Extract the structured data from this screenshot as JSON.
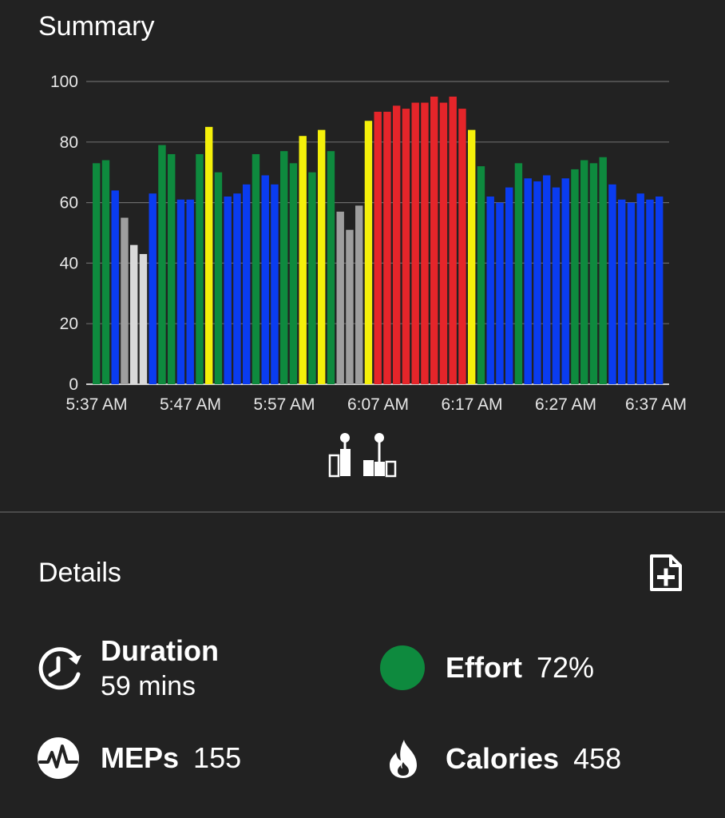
{
  "summary": {
    "title": "Summary"
  },
  "details": {
    "title": "Details"
  },
  "metrics": {
    "duration": {
      "label": "Duration",
      "value": "59 mins",
      "icon": "clock-refresh-icon"
    },
    "effort": {
      "label": "Effort",
      "value": "72%",
      "icon": "effort-dot-icon",
      "color": "#0e8a3e"
    },
    "meps": {
      "label": "MEPs",
      "value": "155",
      "icon": "heartbeat-icon"
    },
    "calories": {
      "label": "Calories",
      "value": "458",
      "icon": "flame-icon"
    }
  },
  "colors": {
    "gray": "#9e9e9e",
    "white": "#d9d9d9",
    "blue": "#0a3cf0",
    "green": "#0e8a3e",
    "yellow": "#f5f00a",
    "red": "#e5252a",
    "background": "#222222"
  },
  "chart_data": {
    "type": "bar",
    "ylim": [
      0,
      100
    ],
    "yticks": [
      0,
      20,
      40,
      60,
      80,
      100
    ],
    "xtick_labels": [
      "5:37 AM",
      "5:47 AM",
      "5:57 AM",
      "6:07 AM",
      "6:17 AM",
      "6:27 AM",
      "6:37 AM"
    ],
    "grid": true,
    "values": [
      73,
      74,
      64,
      55,
      46,
      43,
      63,
      79,
      76,
      61,
      61,
      76,
      85,
      70,
      62,
      63,
      66,
      76,
      69,
      66,
      77,
      73,
      82,
      70,
      84,
      77,
      57,
      51,
      59,
      87,
      90,
      90,
      92,
      91,
      93,
      93,
      95,
      93,
      95,
      91,
      84,
      72,
      62,
      60,
      65,
      73,
      68,
      67,
      69,
      65,
      68,
      71,
      74,
      73,
      75,
      66,
      61,
      60,
      63,
      61,
      62
    ],
    "zones": [
      "green",
      "green",
      "blue",
      "gray",
      "white",
      "white",
      "blue",
      "green",
      "green",
      "blue",
      "blue",
      "green",
      "yellow",
      "green",
      "blue",
      "blue",
      "blue",
      "green",
      "blue",
      "blue",
      "green",
      "green",
      "yellow",
      "green",
      "yellow",
      "green",
      "gray",
      "gray",
      "gray",
      "yellow",
      "red",
      "red",
      "red",
      "red",
      "red",
      "red",
      "red",
      "red",
      "red",
      "red",
      "yellow",
      "green",
      "blue",
      "blue",
      "blue",
      "green",
      "blue",
      "blue",
      "blue",
      "blue",
      "blue",
      "green",
      "green",
      "green",
      "green",
      "blue",
      "blue",
      "blue",
      "blue",
      "blue",
      "blue"
    ]
  }
}
